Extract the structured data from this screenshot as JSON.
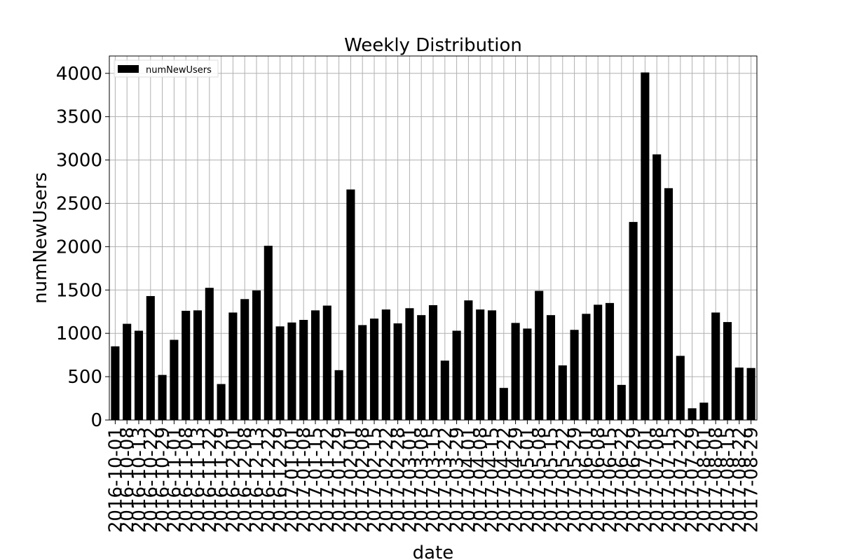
{
  "chart_data": {
    "type": "bar",
    "title": "Weekly Distribution",
    "xlabel": "date",
    "ylabel": "numNewUsers",
    "ylim": [
      0,
      4200
    ],
    "yticks": [
      0,
      500,
      1000,
      1500,
      2000,
      2500,
      3000,
      3500,
      4000
    ],
    "grid": true,
    "legend": {
      "placement": "top-left",
      "entries": [
        "numNewUsers"
      ]
    },
    "colors": {
      "bar": "#000000",
      "grid": "#b0b0b0",
      "axis": "#000000"
    },
    "categories": [
      "2016-10-01",
      "2016-10-08",
      "2016-10-13",
      "2016-10-22",
      "2016-10-29",
      "2016-11-01",
      "2016-11-08",
      "2016-11-13",
      "2016-11-22",
      "2016-11-29",
      "2016-12-01",
      "2016-12-08",
      "2016-12-13",
      "2016-12-22",
      "2016-12-29",
      "2017-01-01",
      "2017-01-08",
      "2017-01-15",
      "2017-01-22",
      "2017-01-29",
      "2017-02-01",
      "2017-02-08",
      "2017-02-15",
      "2017-02-22",
      "2017-02-28",
      "2017-03-01",
      "2017-03-08",
      "2017-03-15",
      "2017-03-22",
      "2017-03-29",
      "2017-04-01",
      "2017-04-08",
      "2017-04-15",
      "2017-04-22",
      "2017-04-29",
      "2017-05-01",
      "2017-05-08",
      "2017-05-15",
      "2017-05-22",
      "2017-05-29",
      "2017-06-01",
      "2017-06-08",
      "2017-06-15",
      "2017-06-22",
      "2017-06-29",
      "2017-07-01",
      "2017-07-08",
      "2017-07-15",
      "2017-07-22",
      "2017-07-29",
      "2017-08-01",
      "2017-08-08",
      "2017-08-15",
      "2017-08-22",
      "2017-08-29"
    ],
    "series": [
      {
        "name": "numNewUsers",
        "values": [
          850,
          1110,
          1030,
          1430,
          520,
          925,
          1260,
          1265,
          1525,
          415,
          1240,
          1395,
          1495,
          2010,
          1080,
          1125,
          1155,
          1265,
          1320,
          575,
          2660,
          1095,
          1170,
          1275,
          1115,
          1290,
          1210,
          1325,
          685,
          1030,
          1380,
          1275,
          1265,
          370,
          1120,
          1055,
          1490,
          1210,
          630,
          1040,
          1225,
          1330,
          1350,
          405,
          2285,
          4010,
          3065,
          2675,
          740,
          135,
          200,
          1240,
          1130,
          605,
          600
        ]
      }
    ]
  }
}
